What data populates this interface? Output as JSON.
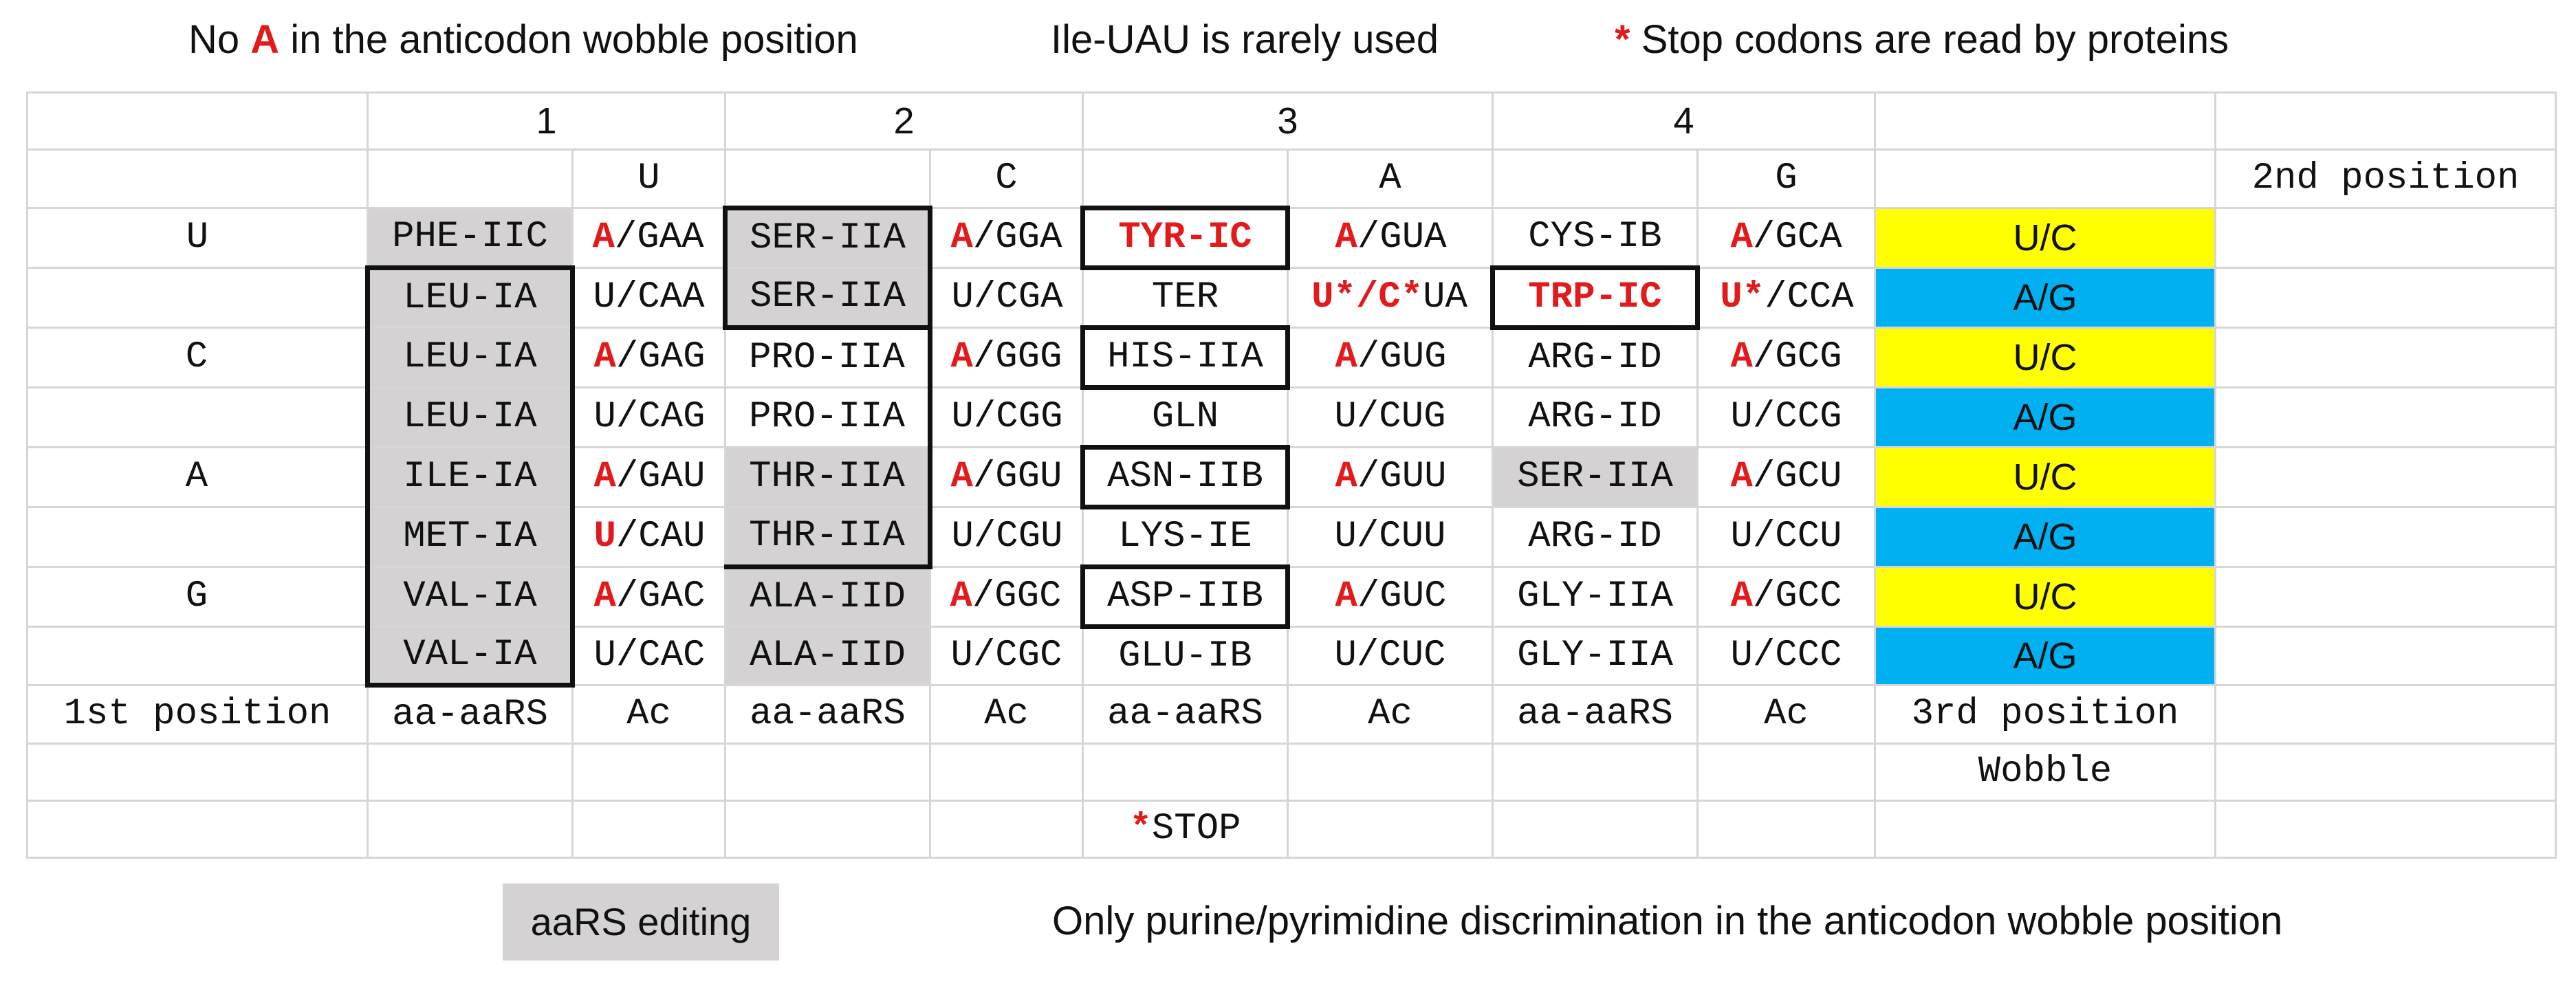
{
  "notes": {
    "wobble_prefix": "No ",
    "wobble_letter": "A",
    "wobble_suffix": " in the anticodon wobble position",
    "ile": "Ile-UAU is rarely used",
    "stop_star": "*",
    "stop_text": " Stop codons are read by proteins"
  },
  "table": {
    "group_numbers": [
      "1",
      "2",
      "3",
      "4"
    ],
    "second_bases": [
      "U",
      "C",
      "A",
      "G"
    ],
    "second_position_label": "2nd position",
    "first_bases": [
      "U",
      "C",
      "A",
      "G"
    ],
    "rows": [
      {
        "cells": [
          {
            "text": "PHE-IIC"
          },
          {
            "red": "A",
            "rest": "/GAA"
          },
          {
            "text": "SER-IIA"
          },
          {
            "red": "A",
            "rest": "/GGA"
          },
          {
            "text": "TYR-IC"
          },
          {
            "red": "A",
            "rest": "/GUA"
          },
          {
            "text": "CYS-IB"
          },
          {
            "red": "A",
            "rest": "/GCA"
          }
        ],
        "wobble": "U/C"
      },
      {
        "cells": [
          {
            "text": "LEU-IA"
          },
          {
            "red": "",
            "rest": "U/CAA"
          },
          {
            "text": "SER-IIA"
          },
          {
            "red": "",
            "rest": "U/CGA"
          },
          {
            "text": "TER"
          },
          {
            "red": "U*/C*",
            "rest": "UA"
          },
          {
            "text": "TRP-IC"
          },
          {
            "red": "U*",
            "rest": "/CCA"
          }
        ],
        "wobble": "A/G"
      },
      {
        "cells": [
          {
            "text": "LEU-IA"
          },
          {
            "red": "A",
            "rest": "/GAG"
          },
          {
            "text": "PRO-IIA"
          },
          {
            "red": "A",
            "rest": "/GGG"
          },
          {
            "text": "HIS-IIA"
          },
          {
            "red": "A",
            "rest": "/GUG"
          },
          {
            "text": "ARG-ID"
          },
          {
            "red": "A",
            "rest": "/GCG"
          }
        ],
        "wobble": "U/C"
      },
      {
        "cells": [
          {
            "text": "LEU-IA"
          },
          {
            "red": "",
            "rest": "U/CAG"
          },
          {
            "text": "PRO-IIA"
          },
          {
            "red": "",
            "rest": "U/CGG"
          },
          {
            "text": "GLN"
          },
          {
            "red": "",
            "rest": "U/CUG"
          },
          {
            "text": "ARG-ID"
          },
          {
            "red": "",
            "rest": "U/CCG"
          }
        ],
        "wobble": "A/G"
      },
      {
        "cells": [
          {
            "text": "ILE-IA"
          },
          {
            "red": "A",
            "rest": "/GAU"
          },
          {
            "text": "THR-IIA"
          },
          {
            "red": "A",
            "rest": "/GGU"
          },
          {
            "text": "ASN-IIB"
          },
          {
            "red": "A",
            "rest": "/GUU"
          },
          {
            "text": "SER-IIA"
          },
          {
            "red": "A",
            "rest": "/GCU"
          }
        ],
        "wobble": "U/C"
      },
      {
        "cells": [
          {
            "text": "MET-IA"
          },
          {
            "red": "U",
            "rest": "/CAU"
          },
          {
            "text": "THR-IIA"
          },
          {
            "red": "",
            "rest": "U/CGU"
          },
          {
            "text": "LYS-IE"
          },
          {
            "red": "",
            "rest": "U/CUU"
          },
          {
            "text": "ARG-ID"
          },
          {
            "red": "",
            "rest": "U/CCU"
          }
        ],
        "wobble": "A/G"
      },
      {
        "cells": [
          {
            "text": "VAL-IA"
          },
          {
            "red": "A",
            "rest": "/GAC"
          },
          {
            "text": "ALA-IID"
          },
          {
            "red": "A",
            "rest": "/GGC"
          },
          {
            "text": "ASP-IIB"
          },
          {
            "red": "A",
            "rest": "/GUC"
          },
          {
            "text": "GLY-IIA"
          },
          {
            "red": "A",
            "rest": "/GCC"
          }
        ],
        "wobble": "U/C"
      },
      {
        "cells": [
          {
            "text": "VAL-IA"
          },
          {
            "red": "",
            "rest": "U/CAC"
          },
          {
            "text": "ALA-IID"
          },
          {
            "red": "",
            "rest": "U/CGC"
          },
          {
            "text": "GLU-IB"
          },
          {
            "red": "",
            "rest": "U/CUC"
          },
          {
            "text": "GLY-IIA"
          },
          {
            "red": "",
            "rest": "U/CCC"
          }
        ],
        "wobble": "A/G"
      }
    ],
    "first_position_label": "1st position",
    "col_labels": [
      "aa-aaRS",
      "Ac",
      "aa-aaRS",
      "Ac",
      "aa-aaRS",
      "Ac",
      "aa-aaRS",
      "Ac"
    ],
    "third_position_label": "3rd position",
    "wobble_label": "Wobble",
    "stop_star": "*",
    "stop_label": "STOP",
    "colors": {
      "gray": "#d4d2d2",
      "yellow": "#ffff00",
      "cyan": "#00b0f0",
      "red": "#e31a1c"
    }
  },
  "legend": {
    "editing": "aaRS editing",
    "discrimination": "Only purine/pyrimidine discrimination in the anticodon wobble position"
  }
}
